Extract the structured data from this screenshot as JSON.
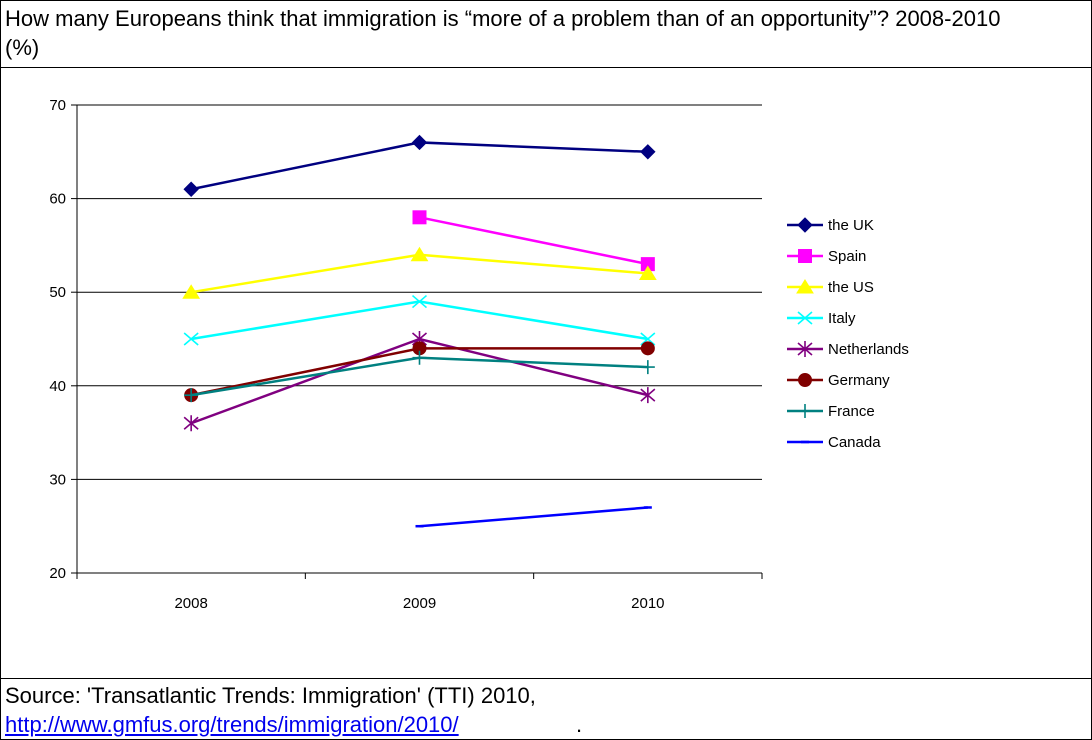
{
  "page": {
    "title": "How many Europeans think that immigration is “more of a problem than of an opportunity”? 2008-2010 (%)",
    "source_text": "Source: 'Transatlantic Trends: Immigration' (TTI) 2010,",
    "source_link": "http://www.gmfus.org/trends/immigration/2010/",
    "source_period": "."
  },
  "chart_data": {
    "type": "line",
    "title": "How many Europeans think that immigration is “more of a problem than of an opportunity”? 2008-2010 (%)",
    "xlabel": "",
    "ylabel": "",
    "categories": [
      "2008",
      "2009",
      "2010"
    ],
    "ylim": [
      20,
      70
    ],
    "yticks": [
      "20",
      "30",
      "40",
      "50",
      "60",
      "70"
    ],
    "grid": true,
    "legend": "right",
    "series": [
      {
        "name": "the UK",
        "values": [
          61,
          66,
          65
        ],
        "color": "#000080",
        "marker": "diamond"
      },
      {
        "name": "Spain",
        "values": [
          null,
          58,
          53
        ],
        "color": "#ff00ff",
        "marker": "square"
      },
      {
        "name": "the US",
        "values": [
          50,
          54,
          52
        ],
        "color": "#ffff00",
        "marker": "triangle"
      },
      {
        "name": "Italy",
        "values": [
          45,
          49,
          45
        ],
        "color": "#00ffff",
        "marker": "x"
      },
      {
        "name": "Netherlands",
        "values": [
          36,
          45,
          39
        ],
        "color": "#800080",
        "marker": "star"
      },
      {
        "name": "Germany",
        "values": [
          39,
          44,
          44
        ],
        "color": "#800000",
        "marker": "circle"
      },
      {
        "name": "France",
        "values": [
          39,
          43,
          42
        ],
        "color": "#008080",
        "marker": "plus"
      },
      {
        "name": "Canada",
        "values": [
          null,
          25,
          27
        ],
        "color": "#0000ff",
        "marker": "dash"
      }
    ]
  }
}
